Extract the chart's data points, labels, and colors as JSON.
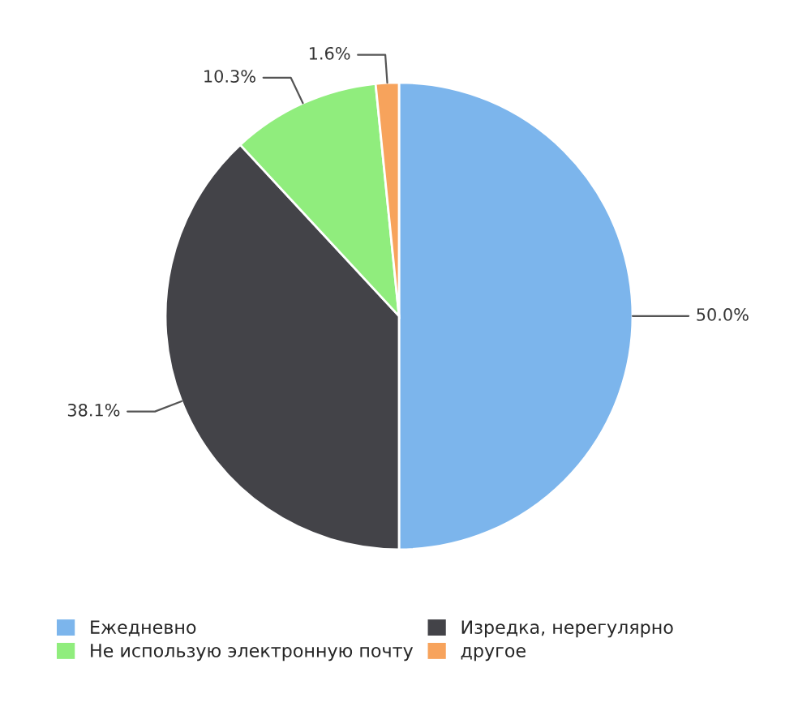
{
  "chart_data": {
    "type": "pie",
    "categories": [
      "Ежедневно",
      "Изредка, нерегулярно",
      "Не использую электронную почту",
      "другое"
    ],
    "values": [
      50.0,
      38.1,
      10.3,
      1.6
    ],
    "value_labels": [
      "50.0%",
      "38.1%",
      "10.3%",
      "1.6%"
    ],
    "colors": [
      "#7cb5ec",
      "#434348",
      "#90ed7d",
      "#f7a35c"
    ],
    "legend": "bottom"
  }
}
